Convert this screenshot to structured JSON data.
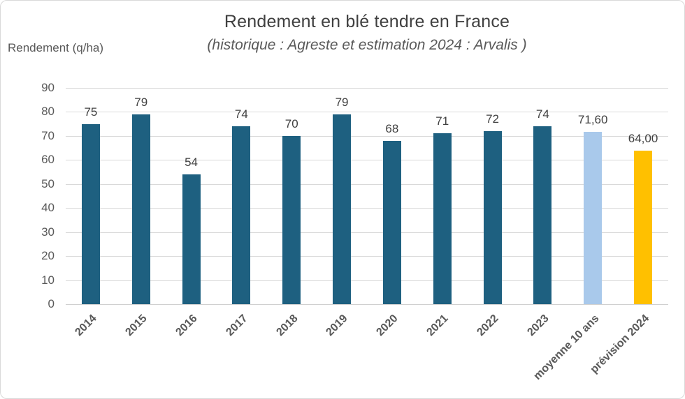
{
  "chart_data": {
    "type": "bar",
    "title": "Rendement en blé tendre en France",
    "subtitle": "(historique : Agreste et estimation 2024 : Arvalis )",
    "y_axis_title": "Rendement (q/ha)",
    "categories": [
      "2014",
      "2015",
      "2016",
      "2017",
      "2018",
      "2019",
      "2020",
      "2021",
      "2022",
      "2023",
      "moyenne 10 ans",
      "prévision 2024"
    ],
    "values": [
      75,
      79,
      54,
      74,
      70,
      79,
      68,
      71,
      72,
      74,
      71.6,
      64
    ],
    "value_labels": [
      "75",
      "79",
      "54",
      "74",
      "70",
      "79",
      "68",
      "71",
      "72",
      "74",
      "71,60",
      "64,00"
    ],
    "ylim": [
      0,
      90
    ],
    "yticks": [
      0,
      10,
      20,
      30,
      40,
      50,
      60,
      70,
      80,
      90
    ],
    "grid": true,
    "legend_position": "none",
    "colors": {
      "historical_bar": "#1E6080",
      "average_bar": "#A9C9EB",
      "forecast_bar": "#FFC000",
      "gridline": "#D9D9D9",
      "title_text": "#404040",
      "axis_text": "#595959"
    },
    "bar_color_keys": [
      "historical_bar",
      "historical_bar",
      "historical_bar",
      "historical_bar",
      "historical_bar",
      "historical_bar",
      "historical_bar",
      "historical_bar",
      "historical_bar",
      "historical_bar",
      "average_bar",
      "forecast_bar"
    ]
  }
}
